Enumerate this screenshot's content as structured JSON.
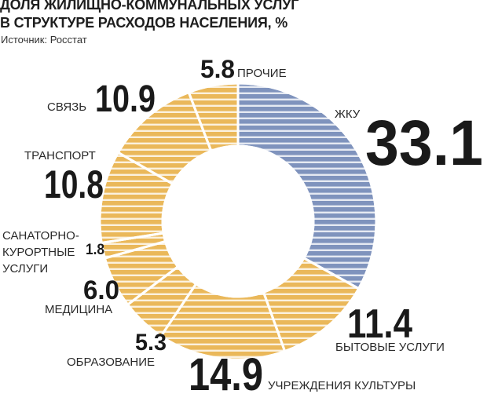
{
  "title_lines": [
    "ДОЛЯ ЖИЛИЩНО-КОММУНАЛЬНЫХ УСЛУГ",
    "В СТРУКТУРЕ РАСХОДОВ НАСЕЛЕНИЯ, %"
  ],
  "source": "Источник: Росстат",
  "colors": {
    "highlight": "#7f93bd",
    "base": "#eab85a",
    "stripe": "#ffffff"
  },
  "chart_data": {
    "type": "pie",
    "donut": true,
    "title": "ДОЛЯ ЖИЛИЩНО-КОММУНАЛЬНЫХ УСЛУГ В СТРУКТУРЕ РАСХОДОВ НАСЕЛЕНИЯ, %",
    "unit": "%",
    "slices": [
      {
        "label": "ЖКУ",
        "value": 33.1,
        "value_text": "33.1",
        "highlight": true
      },
      {
        "label": "БЫТОВЫЕ УСЛУГИ",
        "value": 11.4,
        "value_text": "11.4"
      },
      {
        "label": "УЧРЕЖДЕНИЯ КУЛЬТУРЫ",
        "value": 14.9,
        "value_text": "14.9"
      },
      {
        "label": "ОБРАЗОВАНИЕ",
        "value": 5.3,
        "value_text": "5.3"
      },
      {
        "label": "МЕДИЦИНА",
        "value": 6.0,
        "value_text": "6.0"
      },
      {
        "label": "САНАТОРНО-КУРОРТНЫЕ УСЛУГИ",
        "label_lines": [
          "САНАТОРНО-",
          "КУРОРТНЫЕ",
          "УСЛУГИ"
        ],
        "value": 1.8,
        "value_text": "1.8"
      },
      {
        "label": "ТРАНСПОРТ",
        "value": 10.8,
        "value_text": "10.8"
      },
      {
        "label": "СВЯЗЬ",
        "value": 10.9,
        "value_text": "10.9"
      },
      {
        "label": "ПРОЧИЕ",
        "value": 5.8,
        "value_text": "5.8"
      }
    ]
  }
}
